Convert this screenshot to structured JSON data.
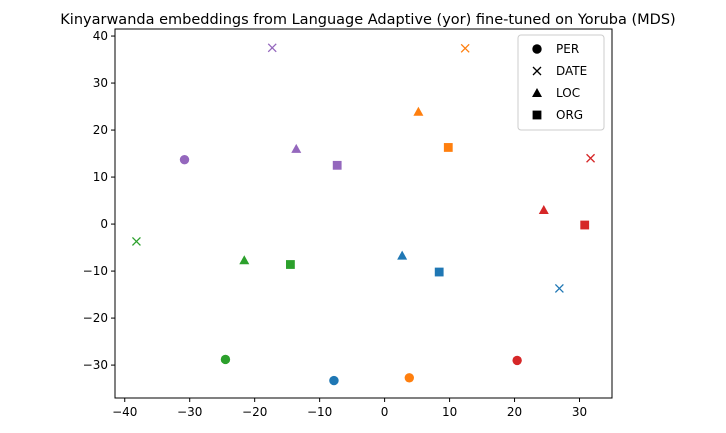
{
  "chart_data": {
    "type": "scatter",
    "title": "Kinyarwanda embeddings from Language Adaptive (yor) fine-tuned on Yoruba (MDS)",
    "xlabel": "",
    "ylabel": "",
    "xlim": [
      -41.5,
      35
    ],
    "ylim": [
      -37,
      41.5
    ],
    "xticks": [
      -40,
      -30,
      -20,
      -10,
      0,
      10,
      20,
      30
    ],
    "yticks": [
      -30,
      -20,
      -10,
      0,
      10,
      20,
      30,
      40
    ],
    "grid": false,
    "legend_position": "top-right",
    "legend": [
      {
        "label": "PER",
        "marker": "circle"
      },
      {
        "label": "DATE",
        "marker": "x"
      },
      {
        "label": "LOC",
        "marker": "triangle"
      },
      {
        "label": "ORG",
        "marker": "square"
      }
    ],
    "colors": {
      "blue": "#1f77b4",
      "orange": "#ff7f0e",
      "green": "#2ca02c",
      "red": "#d62728",
      "purple": "#9467bd"
    },
    "points": [
      {
        "x": -7.8,
        "y": -33.3,
        "marker": "circle",
        "color": "blue"
      },
      {
        "x": 26.9,
        "y": -13.7,
        "marker": "x",
        "color": "blue"
      },
      {
        "x": 2.7,
        "y": -6.7,
        "marker": "triangle",
        "color": "blue"
      },
      {
        "x": 8.4,
        "y": -10.2,
        "marker": "square",
        "color": "blue"
      },
      {
        "x": 3.8,
        "y": -32.7,
        "marker": "circle",
        "color": "orange"
      },
      {
        "x": 12.4,
        "y": 37.4,
        "marker": "x",
        "color": "orange"
      },
      {
        "x": 5.2,
        "y": 23.9,
        "marker": "triangle",
        "color": "orange"
      },
      {
        "x": 9.8,
        "y": 16.3,
        "marker": "square",
        "color": "orange"
      },
      {
        "x": -24.5,
        "y": -28.8,
        "marker": "circle",
        "color": "green"
      },
      {
        "x": -38.2,
        "y": -3.7,
        "marker": "x",
        "color": "green"
      },
      {
        "x": -21.6,
        "y": -7.7,
        "marker": "triangle",
        "color": "green"
      },
      {
        "x": -14.5,
        "y": -8.6,
        "marker": "square",
        "color": "green"
      },
      {
        "x": 20.4,
        "y": -29.0,
        "marker": "circle",
        "color": "red"
      },
      {
        "x": 31.7,
        "y": 14.0,
        "marker": "x",
        "color": "red"
      },
      {
        "x": 24.5,
        "y": 3.0,
        "marker": "triangle",
        "color": "red"
      },
      {
        "x": 30.8,
        "y": -0.2,
        "marker": "square",
        "color": "red"
      },
      {
        "x": -30.8,
        "y": 13.7,
        "marker": "circle",
        "color": "purple"
      },
      {
        "x": -17.3,
        "y": 37.5,
        "marker": "x",
        "color": "purple"
      },
      {
        "x": -13.6,
        "y": 16.0,
        "marker": "triangle",
        "color": "purple"
      },
      {
        "x": -7.3,
        "y": 12.5,
        "marker": "square",
        "color": "purple"
      }
    ]
  }
}
